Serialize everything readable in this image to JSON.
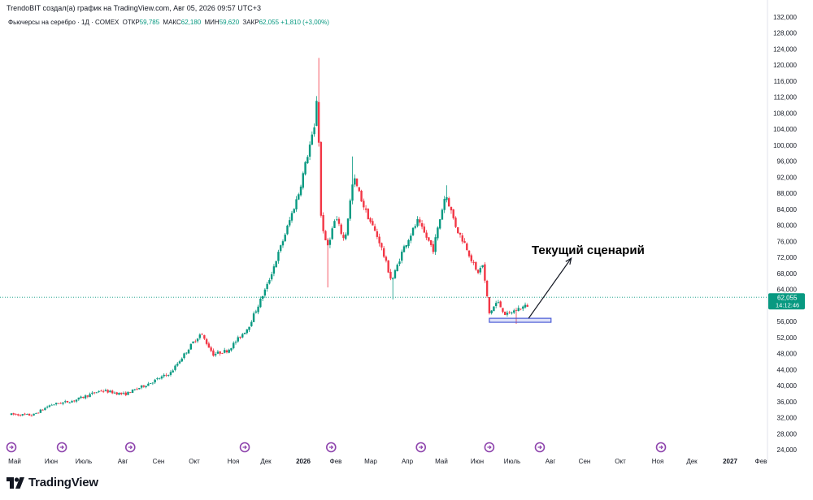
{
  "header": {
    "attribution": "TrendoBIT создал(а) график на TradingView.com, Авг 05, 2026 09:57 UTC+3",
    "symbol": "Фьючерсы на серебро · 1Д · COMEX",
    "open_label": "ОТКР",
    "open_value": "59,785",
    "high_label": "МАКС",
    "high_value": "62,180",
    "low_label": "МИН",
    "low_value": "59,620",
    "close_label": "ЗАКР",
    "close_value": "62,055",
    "change": "+1,810 (+3,00%)"
  },
  "price_tag": {
    "price": "62,055",
    "countdown": "14:12:46"
  },
  "annotation": {
    "text": "Текущий сценарий"
  },
  "logo": {
    "text": "TradingView"
  },
  "colors": {
    "up": "#089981",
    "down": "#f23645",
    "text": "#131722",
    "axis": "#787b86",
    "support": "#4a5bd6",
    "event": "#8e44ad"
  },
  "chart_data": {
    "type": "candlestick",
    "ylim": [
      24000,
      132000
    ],
    "y_ticks": [
      "24,000",
      "28,000",
      "32,000",
      "36,000",
      "40,000",
      "44,000",
      "48,000",
      "52,000",
      "56,000",
      "60,000",
      "64,000",
      "68,000",
      "72,000",
      "76,000",
      "80,000",
      "84,000",
      "88,000",
      "92,000",
      "96,000",
      "100,000",
      "104,000",
      "108,000",
      "112,000",
      "116,000",
      "120,000",
      "124,000",
      "128,000",
      "132,000"
    ],
    "x_ticks": [
      "Май",
      "Июн",
      "Июль",
      "Авг",
      "Сен",
      "Окт",
      "Ноя",
      "Дек",
      "2026",
      "Фев",
      "Мар",
      "Апр",
      "Май",
      "Июн",
      "Июль",
      "Авг",
      "Сен",
      "Окт",
      "Ноя",
      "Дек",
      "2027",
      "Фев"
    ],
    "series_path": [
      {
        "d": "2025-05-01",
        "p": 32800
      },
      {
        "d": "2025-05-20",
        "p": 32600
      },
      {
        "d": "2025-06-05",
        "p": 35200
      },
      {
        "d": "2025-06-25",
        "p": 36200
      },
      {
        "d": "2025-07-20",
        "p": 38800
      },
      {
        "d": "2025-08-10",
        "p": 37800
      },
      {
        "d": "2025-09-01",
        "p": 40600
      },
      {
        "d": "2025-09-20",
        "p": 43200
      },
      {
        "d": "2025-10-10",
        "p": 50800
      },
      {
        "d": "2025-10-17",
        "p": 53000
      },
      {
        "d": "2025-10-28",
        "p": 47800
      },
      {
        "d": "2025-11-10",
        "p": 48800
      },
      {
        "d": "2025-11-28",
        "p": 54500
      },
      {
        "d": "2025-12-15",
        "p": 65000
      },
      {
        "d": "2025-12-30",
        "p": 77000
      },
      {
        "d": "2026-01-12",
        "p": 88000
      },
      {
        "d": "2026-01-22",
        "p": 100000
      },
      {
        "d": "2026-01-27",
        "p": 105000
      },
      {
        "d": "2026-01-29",
        "p": 118000
      },
      {
        "d": "2026-01-31",
        "p": 84000
      },
      {
        "d": "2026-02-06",
        "p": 74000
      },
      {
        "d": "2026-02-14",
        "p": 82000
      },
      {
        "d": "2026-02-22",
        "p": 76000
      },
      {
        "d": "2026-03-02",
        "p": 92000
      },
      {
        "d": "2026-03-12",
        "p": 84000
      },
      {
        "d": "2026-03-25",
        "p": 76000
      },
      {
        "d": "2026-04-05",
        "p": 66000
      },
      {
        "d": "2026-04-15",
        "p": 74000
      },
      {
        "d": "2026-04-28",
        "p": 81000
      },
      {
        "d": "2026-05-12",
        "p": 74000
      },
      {
        "d": "2026-05-23",
        "p": 88000
      },
      {
        "d": "2026-06-02",
        "p": 79000
      },
      {
        "d": "2026-06-10",
        "p": 75000
      },
      {
        "d": "2026-06-20",
        "p": 68000
      },
      {
        "d": "2026-06-25",
        "p": 70000
      },
      {
        "d": "2026-07-01",
        "p": 58000
      },
      {
        "d": "2026-07-08",
        "p": 61000
      },
      {
        "d": "2026-07-16",
        "p": 57500
      },
      {
        "d": "2026-07-25",
        "p": 59000
      },
      {
        "d": "2026-08-04",
        "p": 60000
      },
      {
        "d": "2026-08-05",
        "p": 62055
      }
    ],
    "wick_spikes": [
      {
        "d": "2026-01-29",
        "high": 121800
      },
      {
        "d": "2026-02-07",
        "low": 64500
      },
      {
        "d": "2026-03-01",
        "high": 97200
      },
      {
        "d": "2026-04-05",
        "low": 61500
      },
      {
        "d": "2026-05-23",
        "high": 90000
      },
      {
        "d": "2026-07-24",
        "low": 55400
      }
    ],
    "support_zone": {
      "from": "2026-07-01",
      "to": "2026-08-25",
      "low": 55800,
      "high": 56800
    },
    "projection": {
      "from": {
        "d": "2026-08-05",
        "p": 56800
      },
      "to": {
        "d": "2026-09-12",
        "p": 71800
      }
    },
    "last_price": 62055,
    "event_markers": [
      "2025-05-01",
      "2025-06-15",
      "2025-08-15",
      "2025-11-25",
      "2026-02-10",
      "2026-05-01",
      "2026-07-01",
      "2026-08-15",
      "2026-12-01"
    ]
  }
}
